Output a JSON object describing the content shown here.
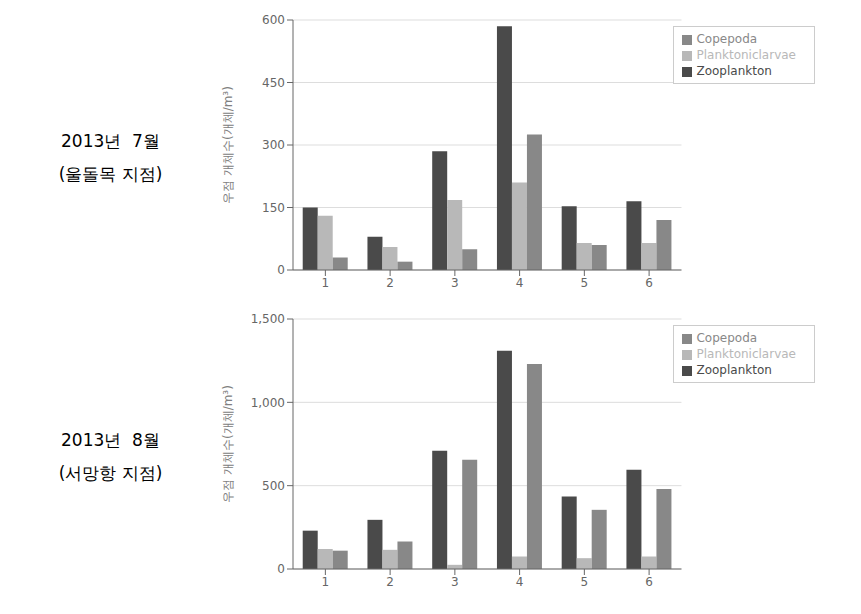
{
  "chart_data": [
    {
      "type": "bar",
      "title": "2013년  7월",
      "subtitle": "(울돌목 지점)",
      "categories": [
        1,
        2,
        3,
        4,
        5,
        6
      ],
      "series": [
        {
          "name": "Zooplankton",
          "color": "#4a4a4a",
          "values": [
            150,
            80,
            285,
            585,
            153,
            165
          ]
        },
        {
          "name": "Planktoniclarvae",
          "color": "#b8b8b8",
          "values": [
            130,
            55,
            168,
            210,
            65,
            65
          ]
        },
        {
          "name": "Copepoda",
          "color": "#888888",
          "values": [
            30,
            20,
            50,
            325,
            60,
            120
          ]
        }
      ],
      "ylim": [
        0,
        600
      ],
      "yticks": [
        0,
        150,
        300,
        450,
        600
      ],
      "ylabel": "우점 개체수(개체/m³)",
      "grid": true,
      "legend": "upper right"
    },
    {
      "type": "bar",
      "title": "2013년  8월",
      "subtitle": "(서망항 지점)",
      "categories": [
        1,
        2,
        3,
        4,
        5,
        6
      ],
      "series": [
        {
          "name": "Zooplankton",
          "color": "#4a4a4a",
          "values": [
            230,
            295,
            710,
            1310,
            435,
            595
          ]
        },
        {
          "name": "Planktoniclarvae",
          "color": "#b8b8b8",
          "values": [
            120,
            115,
            25,
            75,
            65,
            75
          ]
        },
        {
          "name": "Copepoda",
          "color": "#888888",
          "values": [
            110,
            165,
            655,
            1230,
            355,
            480
          ]
        }
      ],
      "ylim": [
        0,
        1500
      ],
      "yticks": [
        0,
        500,
        {
          "value": 1000,
          "label": "1,000"
        },
        {
          "value": 1500,
          "label": "1,500"
        }
      ],
      "ylabel": "우점 개체수(개체/m³)",
      "grid": true,
      "legend": "upper right"
    }
  ]
}
